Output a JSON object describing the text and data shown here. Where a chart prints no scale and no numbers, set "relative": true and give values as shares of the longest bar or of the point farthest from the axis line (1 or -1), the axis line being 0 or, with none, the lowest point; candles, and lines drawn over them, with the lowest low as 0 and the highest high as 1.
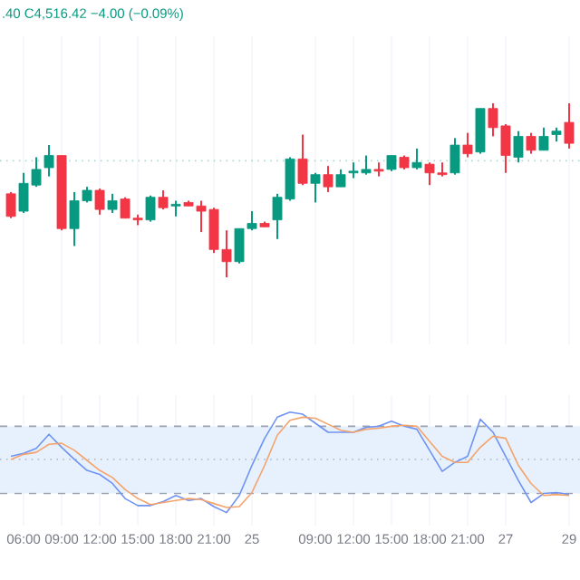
{
  "chart_data": [
    {
      "type": "candlestick",
      "relative": true,
      "tick_labels": false,
      "grid": "x",
      "annotations": [
        ".40 C4,516.42 −4.00 (−0.09%)"
      ],
      "categories": [
        null,
        null,
        null,
        null,
        null,
        null,
        null,
        null,
        null,
        null,
        null,
        null,
        null,
        null,
        null,
        null,
        null,
        null,
        null,
        null,
        null,
        null,
        null,
        null,
        null,
        null,
        null,
        null,
        null,
        null,
        null,
        null,
        null,
        null,
        null,
        null,
        null,
        null,
        null,
        null,
        null,
        null,
        null,
        null,
        null
      ],
      "ohlc": [
        [
          0.48,
          0.49,
          0.34,
          0.35
        ],
        [
          0.38,
          0.6,
          0.37,
          0.54
        ],
        [
          0.53,
          0.69,
          0.52,
          0.62
        ],
        [
          0.63,
          0.76,
          0.58,
          0.7
        ],
        [
          0.7,
          0.7,
          0.27,
          0.28
        ],
        [
          0.28,
          0.49,
          0.18,
          0.44
        ],
        [
          0.44,
          0.52,
          0.43,
          0.5
        ],
        [
          0.5,
          0.51,
          0.36,
          0.39
        ],
        [
          0.39,
          0.48,
          0.37,
          0.44
        ],
        [
          0.45,
          0.46,
          0.34,
          0.34
        ],
        [
          0.34,
          0.36,
          0.3,
          0.33
        ],
        [
          0.33,
          0.47,
          0.32,
          0.46
        ],
        [
          0.46,
          0.5,
          0.39,
          0.4
        ],
        [
          0.41,
          0.44,
          0.35,
          0.42
        ],
        [
          0.43,
          0.44,
          0.41,
          0.41
        ],
        [
          0.41,
          0.44,
          0.26,
          0.38
        ],
        [
          0.39,
          0.4,
          0.14,
          0.16
        ],
        [
          0.16,
          0.27,
          0,
          0.09
        ],
        [
          0.09,
          0.28,
          0.08,
          0.28
        ],
        [
          0.28,
          0.38,
          0.27,
          0.31
        ],
        [
          0.31,
          0.32,
          0.29,
          0.29
        ],
        [
          0.33,
          0.48,
          0.22,
          0.46
        ],
        [
          0.45,
          0.69,
          0.44,
          0.68
        ],
        [
          0.68,
          0.82,
          0.53,
          0.54
        ],
        [
          0.54,
          0.6,
          0.43,
          0.59
        ],
        [
          0.59,
          0.64,
          0.49,
          0.52
        ],
        [
          0.52,
          0.62,
          0.52,
          0.59
        ],
        [
          0.6,
          0.66,
          0.57,
          0.61
        ],
        [
          0.6,
          0.7,
          0.59,
          0.62
        ],
        [
          0.62,
          0.66,
          0.58,
          0.61
        ],
        [
          0.62,
          0.7,
          0.61,
          0.7
        ],
        [
          0.69,
          0.7,
          0.62,
          0.63
        ],
        [
          0.63,
          0.74,
          0.62,
          0.66
        ],
        [
          0.65,
          0.66,
          0.53,
          0.6
        ],
        [
          0.6,
          0.66,
          0.58,
          0.59
        ],
        [
          0.6,
          0.8,
          0.59,
          0.76
        ],
        [
          0.76,
          0.83,
          0.69,
          0.71
        ],
        [
          0.72,
          0.97,
          0.71,
          0.97
        ],
        [
          0.97,
          1,
          0.81,
          0.86
        ],
        [
          0.87,
          0.88,
          0.6,
          0.7
        ],
        [
          0.69,
          0.84,
          0.66,
          0.81
        ],
        [
          0.81,
          0.83,
          0.71,
          0.73
        ],
        [
          0.73,
          0.86,
          0.73,
          0.81
        ],
        [
          0.82,
          0.86,
          0.78,
          0.84
        ],
        [
          0.89,
          1,
          0.74,
          0.77
        ]
      ],
      "colors": [
        "#f23645",
        "#089981",
        "#089981",
        "#089981",
        "#f23645",
        "#089981",
        "#089981",
        "#f23645",
        "#089981",
        "#f23645",
        "#f23645",
        "#089981",
        "#f23645",
        "#089981",
        "#f23645",
        "#f23645",
        "#f23645",
        "#f23645",
        "#089981",
        "#089981",
        "#f23645",
        "#089981",
        "#089981",
        "#f23645",
        "#089981",
        "#f23645",
        "#089981",
        "#089981",
        "#089981",
        "#f23645",
        "#089981",
        "#f23645",
        "#089981",
        "#f23645",
        "#f23645",
        "#089981",
        "#f23645",
        "#089981",
        "#f23645",
        "#f23645",
        "#089981",
        "#f23645",
        "#089981",
        "#089981",
        "#f23645"
      ],
      "ref_lines": [
        {
          "axis": "y",
          "value": 0.67,
          "color": "#a8dccd",
          "line_style": "dotted"
        }
      ]
    },
    {
      "type": "line",
      "relative": true,
      "grid": "x",
      "marker": "none",
      "line_style": "solid",
      "categories": [
        null,
        "06:00",
        null,
        null,
        "09:00",
        null,
        null,
        "12:00",
        null,
        null,
        "15:00",
        null,
        null,
        "18:00",
        null,
        null,
        "21:00",
        null,
        null,
        "25",
        null,
        null,
        null,
        null,
        "09:00",
        null,
        null,
        "12:00",
        null,
        null,
        "15:00",
        null,
        null,
        "18:00",
        null,
        null,
        "21:00",
        null,
        null,
        "27",
        null,
        null,
        null,
        null,
        "29"
      ],
      "series": [
        {
          "color": "#6f93f2",
          "values": [
            0.56,
            0.59,
            0.64,
            0.78,
            0.65,
            0.53,
            0.42,
            0.38,
            0.29,
            0.14,
            0.07,
            0.07,
            0.11,
            0.17,
            0.12,
            0.14,
            0.06,
            0,
            0.17,
            0.47,
            0.74,
            0.95,
            1,
            0.98,
            0.89,
            0.8,
            0.8,
            0.8,
            0.85,
            0.86,
            0.91,
            0.86,
            0.83,
            0.62,
            0.41,
            0.5,
            0.56,
            0.93,
            0.8,
            0.56,
            0.32,
            0.1,
            0.19,
            0.2,
            0.18
          ]
        },
        {
          "color": "#f5a36c",
          "values": [
            0.53,
            0.58,
            0.6,
            0.68,
            0.69,
            0.62,
            0.52,
            0.42,
            0.35,
            0.23,
            0.14,
            0.08,
            0.1,
            0.12,
            0.14,
            0.13,
            0.09,
            0.05,
            0.06,
            0.2,
            0.47,
            0.77,
            0.92,
            0.95,
            0.94,
            0.88,
            0.82,
            0.8,
            0.83,
            0.84,
            0.86,
            0.87,
            0.86,
            0.71,
            0.56,
            0.5,
            0.5,
            0.65,
            0.76,
            0.74,
            0.47,
            0.29,
            0.17,
            0.18,
            0.17
          ]
        }
      ],
      "bands": [
        {
          "axis": "y",
          "from": 0.19,
          "to": 0.86,
          "color": "#e6f1fd"
        }
      ],
      "ref_lines": [
        {
          "axis": "y",
          "value": 0.86,
          "color": "#9aa3b2",
          "line_style": "dashed"
        },
        {
          "axis": "y",
          "value": 0.19,
          "color": "#9aa3b2",
          "line_style": "dashed"
        },
        {
          "axis": "y",
          "value": 0.53,
          "color": "#b8bfcc",
          "line_style": "dotted"
        }
      ]
    }
  ]
}
